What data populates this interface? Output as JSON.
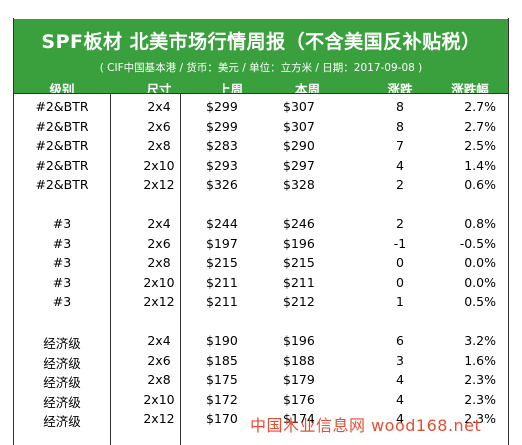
{
  "title": "SPF板材 北美市场行情周报（不含美国反补贴税）",
  "subtitle": "( CIF中国基本港 / 货币：美元 / 单位：立方米 / 日期：2017-09-08 )",
  "columns": [
    "级别",
    "尺寸",
    "上周",
    "本周",
    "涨跌",
    "涨跌幅"
  ],
  "groups": [
    {
      "rows": [
        {
          "grade": "#2&BTR",
          "size": "2x4",
          "last": "$299",
          "this": "$307",
          "change": "8",
          "pct": "2.7%"
        },
        {
          "grade": "#2&BTR",
          "size": "2x6",
          "last": "$299",
          "this": "$307",
          "change": "8",
          "pct": "2.7%"
        },
        {
          "grade": "#2&BTR",
          "size": "2x8",
          "last": "$283",
          "this": "$290",
          "change": "7",
          "pct": "2.5%"
        },
        {
          "grade": "#2&BTR",
          "size": "2x10",
          "last": "$293",
          "this": "$297",
          "change": "4",
          "pct": "1.4%"
        },
        {
          "grade": "#2&BTR",
          "size": "2x12",
          "last": "$326",
          "this": "$328",
          "change": "2",
          "pct": "0.6%"
        }
      ]
    },
    {
      "rows": [
        {
          "grade": "#3",
          "size": "2x4",
          "last": "$244",
          "this": "$246",
          "change": "2",
          "pct": "0.8%"
        },
        {
          "grade": "#3",
          "size": "2x6",
          "last": "$197",
          "this": "$196",
          "change": "-1",
          "pct": "-0.5%"
        },
        {
          "grade": "#3",
          "size": "2x8",
          "last": "$215",
          "this": "$215",
          "change": "0",
          "pct": "0.0%"
        },
        {
          "grade": "#3",
          "size": "2x10",
          "last": "$211",
          "this": "$211",
          "change": "0",
          "pct": "0.0%"
        },
        {
          "grade": "#3",
          "size": "2x12",
          "last": "$211",
          "this": "$212",
          "change": "1",
          "pct": "0.5%"
        }
      ]
    },
    {
      "rows": [
        {
          "grade": "经济级",
          "size": "2x4",
          "last": "$190",
          "this": "$196",
          "change": "6",
          "pct": "3.2%"
        },
        {
          "grade": "经济级",
          "size": "2x6",
          "last": "$185",
          "this": "$188",
          "change": "3",
          "pct": "1.6%"
        },
        {
          "grade": "经济级",
          "size": "2x8",
          "last": "$175",
          "this": "$179",
          "change": "4",
          "pct": "2.3%"
        },
        {
          "grade": "经济级",
          "size": "2x10",
          "last": "$172",
          "this": "$176",
          "change": "4",
          "pct": "2.3%"
        },
        {
          "grade": "经济级",
          "size": "2x12",
          "last": "$170",
          "this": "$174",
          "change": "4",
          "pct": "2.3%"
        }
      ]
    }
  ],
  "watermark": "中国木业信息网 wood168.net",
  "colors": {
    "header_bg": "#3aa03d",
    "header_text": "#ffffff",
    "watermark": "#e23a1f"
  }
}
